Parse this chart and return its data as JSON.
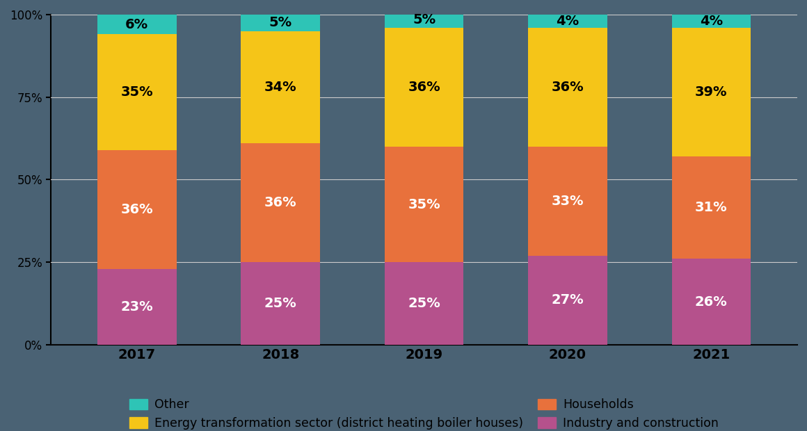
{
  "years": [
    "2017",
    "2018",
    "2019",
    "2020",
    "2021"
  ],
  "industry_and_construction": [
    23,
    25,
    25,
    27,
    26
  ],
  "households": [
    36,
    36,
    35,
    33,
    31
  ],
  "energy_transformation": [
    35,
    34,
    36,
    36,
    39
  ],
  "other": [
    6,
    5,
    5,
    4,
    4
  ],
  "colors": {
    "industry_and_construction": "#b5518c",
    "households": "#e8713c",
    "energy_transformation": "#f5c518",
    "other": "#2ec4b6"
  },
  "legend_labels": {
    "other": "Other",
    "energy_transformation": "Energy transformation sector (district heating boiler houses)",
    "households": "Households",
    "industry_and_construction": "Industry and construction"
  },
  "background_color": "#4a6274",
  "bar_width": 0.55,
  "ylim": [
    0,
    100
  ],
  "yticks": [
    0,
    25,
    50,
    75,
    100
  ],
  "ytick_labels": [
    "0%",
    "25%",
    "50%",
    "75%",
    "100%"
  ]
}
